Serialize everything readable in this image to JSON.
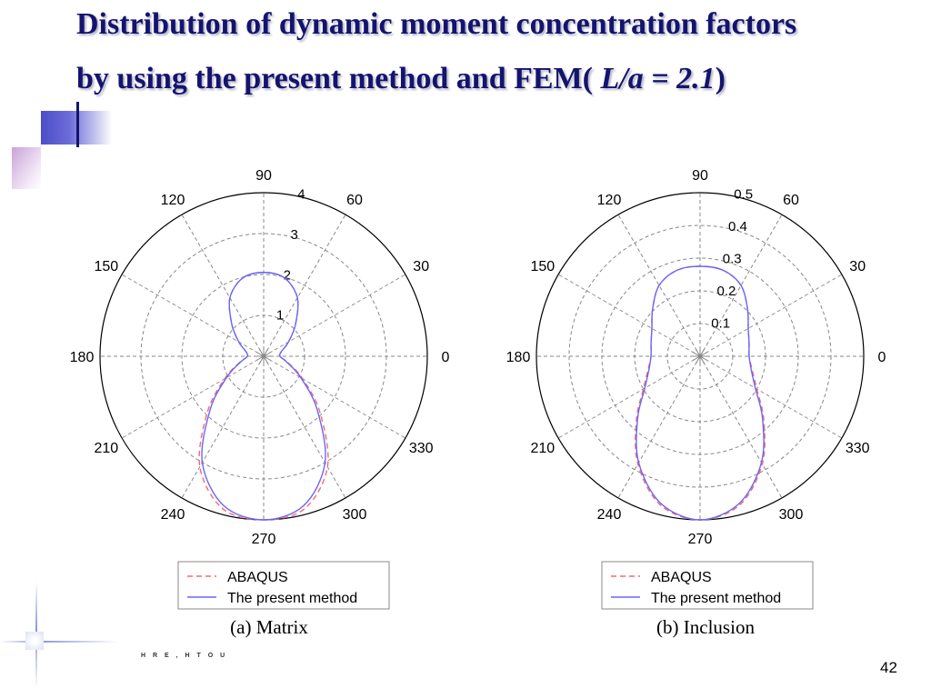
{
  "slide": {
    "title_line1": "Distribution of dynamic moment concentration factors",
    "title_line2_prefix": "by using the present method and FEM( ",
    "title_line2_italic": "L/a = 2.1",
    "title_line2_suffix": ")",
    "footer_text": "H R E , H T O U",
    "page_number": "42"
  },
  "chart_data": [
    {
      "type": "polar-line",
      "caption": "(a) Matrix",
      "angle_ticks": [
        "0",
        "30",
        "60",
        "90",
        "120",
        "150",
        "180",
        "210",
        "240",
        "270",
        "300",
        "330"
      ],
      "radial_ticks": [
        1,
        2,
        3,
        4
      ],
      "r_max": 4,
      "radial_tick_angle_deg": 80,
      "legend": {
        "placement": "bottom-center",
        "entries": [
          "ABAQUS",
          "The present method"
        ]
      },
      "series": [
        {
          "name": "ABAQUS",
          "color": "#ff6666",
          "style": "dashed",
          "theta": [
            0,
            15,
            30,
            45,
            60,
            75,
            90,
            105,
            120,
            135,
            150,
            165,
            180,
            195,
            210,
            225,
            240,
            255,
            270,
            285,
            300,
            315,
            330,
            345,
            360
          ],
          "r": [
            0.4,
            0.45,
            0.7,
            1.1,
            1.65,
            1.98,
            2.05,
            1.98,
            1.65,
            1.1,
            0.7,
            0.45,
            0.4,
            0.62,
            1.1,
            1.95,
            3.12,
            3.86,
            4.0,
            3.86,
            3.12,
            1.95,
            1.1,
            0.62,
            0.4
          ]
        },
        {
          "name": "The present method",
          "color": "#6666ff",
          "style": "solid",
          "theta": [
            0,
            15,
            30,
            45,
            60,
            75,
            90,
            105,
            120,
            135,
            150,
            165,
            180,
            195,
            210,
            225,
            240,
            255,
            270,
            285,
            300,
            315,
            330,
            345,
            360
          ],
          "r": [
            0.4,
            0.45,
            0.7,
            1.1,
            1.65,
            1.98,
            2.05,
            1.98,
            1.65,
            1.1,
            0.7,
            0.45,
            0.4,
            0.6,
            1.05,
            1.85,
            3.0,
            3.78,
            4.0,
            3.78,
            3.0,
            1.85,
            1.05,
            0.6,
            0.4
          ]
        }
      ]
    },
    {
      "type": "polar-line",
      "caption": "(b) Inclusion",
      "angle_ticks": [
        "0",
        "30",
        "60",
        "90",
        "120",
        "150",
        "180",
        "210",
        "240",
        "270",
        "300",
        "330"
      ],
      "radial_ticks": [
        0.1,
        0.2,
        0.3,
        0.4,
        0.5
      ],
      "r_max": 0.5,
      "radial_tick_angle_deg": 80,
      "legend": {
        "placement": "bottom-center",
        "entries": [
          "ABAQUS",
          "The present method"
        ]
      },
      "series": [
        {
          "name": "ABAQUS",
          "color": "#ff6666",
          "style": "dashed",
          "theta": [
            0,
            15,
            30,
            45,
            60,
            75,
            90,
            105,
            120,
            135,
            150,
            165,
            180,
            195,
            210,
            225,
            240,
            255,
            270,
            285,
            300,
            315,
            330,
            345,
            360
          ],
          "r": [
            0.15,
            0.155,
            0.17,
            0.205,
            0.25,
            0.272,
            0.275,
            0.272,
            0.25,
            0.205,
            0.17,
            0.155,
            0.15,
            0.165,
            0.2,
            0.275,
            0.38,
            0.47,
            0.5,
            0.47,
            0.38,
            0.275,
            0.2,
            0.165,
            0.15
          ]
        },
        {
          "name": "The present method",
          "color": "#6666ff",
          "style": "solid",
          "theta": [
            0,
            15,
            30,
            45,
            60,
            75,
            90,
            105,
            120,
            135,
            150,
            165,
            180,
            195,
            210,
            225,
            240,
            255,
            270,
            285,
            300,
            315,
            330,
            345,
            360
          ],
          "r": [
            0.15,
            0.155,
            0.17,
            0.205,
            0.25,
            0.272,
            0.275,
            0.272,
            0.25,
            0.205,
            0.17,
            0.155,
            0.15,
            0.162,
            0.195,
            0.27,
            0.375,
            0.465,
            0.5,
            0.465,
            0.375,
            0.27,
            0.195,
            0.162,
            0.15
          ]
        }
      ]
    }
  ]
}
